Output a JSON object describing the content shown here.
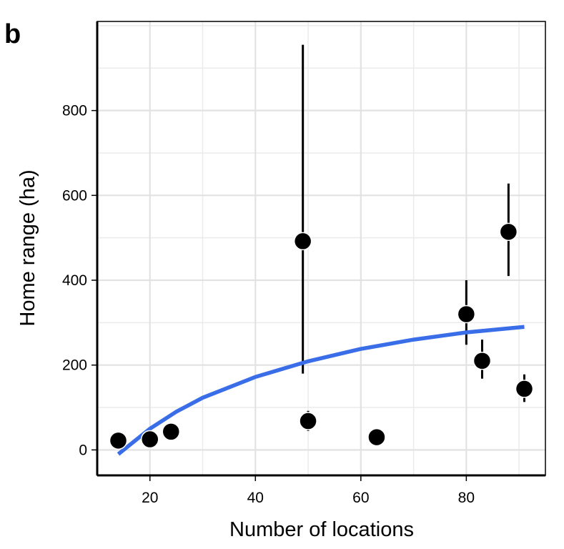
{
  "panel_label": "b",
  "chart_data": {
    "type": "scatter",
    "xlabel": "Number of locations",
    "ylabel": "Home range (ha)",
    "xlim": [
      10,
      95
    ],
    "ylim": [
      -60,
      1010
    ],
    "x_ticks": [
      20,
      40,
      60,
      80
    ],
    "y_ticks": [
      0,
      200,
      400,
      600,
      800
    ],
    "grid": true,
    "points": [
      {
        "x": 14,
        "y": 22,
        "low": 22,
        "high": 22
      },
      {
        "x": 20,
        "y": 25,
        "low": 25,
        "high": 25
      },
      {
        "x": 24,
        "y": 43,
        "low": 43,
        "high": 43
      },
      {
        "x": 49,
        "y": 492,
        "low": 180,
        "high": 955
      },
      {
        "x": 50,
        "y": 68,
        "low": 45,
        "high": 92
      },
      {
        "x": 63,
        "y": 30,
        "low": 30,
        "high": 30
      },
      {
        "x": 80,
        "y": 320,
        "low": 248,
        "high": 400
      },
      {
        "x": 83,
        "y": 210,
        "low": 168,
        "high": 260
      },
      {
        "x": 88,
        "y": 514,
        "low": 410,
        "high": 628
      },
      {
        "x": 91,
        "y": 144,
        "low": 113,
        "high": 178
      }
    ],
    "fit_curve": {
      "color": "#3a6ee8",
      "x": [
        14,
        20,
        25,
        30,
        40,
        50,
        60,
        70,
        80,
        91
      ],
      "y": [
        -10,
        50,
        90,
        123,
        172,
        209,
        238,
        260,
        277,
        290
      ]
    },
    "point_color": "#000000"
  }
}
